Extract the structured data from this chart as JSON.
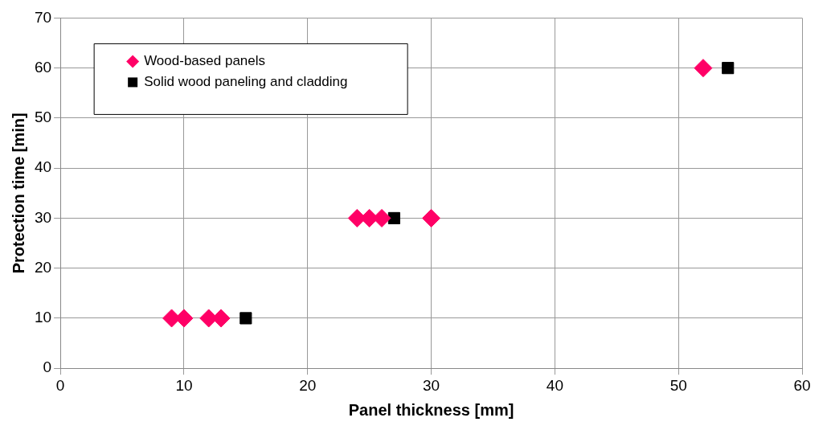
{
  "chart_data": {
    "type": "scatter",
    "xlabel": "Panel thickness [mm]",
    "ylabel": "Protection time [min]",
    "xlim": [
      0,
      60
    ],
    "xticks": [
      0,
      10,
      20,
      30,
      40,
      50,
      60
    ],
    "ylim": [
      0,
      70
    ],
    "yticks": [
      0,
      10,
      20,
      30,
      40,
      50,
      60,
      70
    ],
    "grid": true,
    "legend": "top left",
    "series": [
      {
        "name": "Wood-based panels",
        "color": "#ff0066",
        "marker": "diamond",
        "x": [
          9,
          10,
          12,
          13,
          24,
          25,
          26,
          30,
          52
        ],
        "values": [
          10,
          10,
          10,
          10,
          30,
          30,
          30,
          30,
          60
        ]
      },
      {
        "name": "Solid wood paneling and cladding",
        "color": "#000000",
        "marker": "square",
        "x": [
          15,
          27,
          54
        ],
        "values": [
          10,
          30,
          60
        ]
      }
    ]
  }
}
